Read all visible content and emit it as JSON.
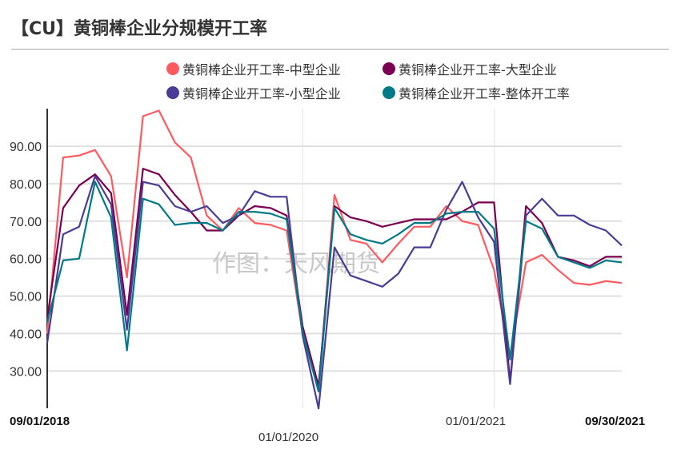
{
  "title": "【CU】黄铜棒企业分规模开工率",
  "watermark": "作图：天风期货",
  "legend": [
    {
      "label": "黄铜棒企业开工率-中型企业",
      "color": "#FF5A5F"
    },
    {
      "label": "黄铜棒企业开工率-大型企业",
      "color": "#7B0051"
    },
    {
      "label": "黄铜棒企业开工率-小型企业",
      "color": "#4A3C96"
    },
    {
      "label": "黄铜棒企业开工率-整体开工率",
      "color": "#007A87"
    }
  ],
  "chart_data": {
    "type": "line",
    "title": "【CU】黄铜棒企业分规模开工率",
    "xlabel": "",
    "ylabel": "",
    "ylim": [
      20,
      100
    ],
    "yticks": [
      "30.00",
      "40.00",
      "50.00",
      "60.00",
      "70.00",
      "80.00",
      "90.00"
    ],
    "xticks": [
      "09/01/2018",
      "01/01/2020",
      "01/01/2021",
      "09/30/2021"
    ],
    "x": [
      "2018-09",
      "2018-10",
      "2018-11",
      "2018-12",
      "2019-01",
      "2019-02",
      "2019-03",
      "2019-04",
      "2019-05",
      "2019-06",
      "2019-07",
      "2019-08",
      "2019-09",
      "2019-10",
      "2019-11",
      "2019-12",
      "2020-01",
      "2020-02",
      "2020-03",
      "2020-04",
      "2020-05",
      "2020-06",
      "2020-07",
      "2020-08",
      "2020-09",
      "2020-10",
      "2020-11",
      "2020-12",
      "2021-01",
      "2021-02",
      "2021-03",
      "2021-04",
      "2021-05",
      "2021-06",
      "2021-07",
      "2021-08",
      "2021-09"
    ],
    "series": [
      {
        "name": "黄铜棒企业开工率-中型企业",
        "color": "#FF5A5F",
        "values": [
          40,
          87,
          87.5,
          89,
          82,
          55,
          98,
          99.5,
          91,
          87,
          71.5,
          67.5,
          73.5,
          69.5,
          69,
          67.5,
          40,
          25,
          77,
          65,
          64,
          59,
          64,
          68.5,
          68.5,
          74,
          70,
          69,
          57,
          34,
          59,
          61,
          57,
          53.5,
          53,
          54,
          53.5
        ]
      },
      {
        "name": "黄铜棒企业开工率-大型企业",
        "color": "#7B0051",
        "values": [
          44,
          73.5,
          79.5,
          82.5,
          77.5,
          45,
          84,
          82.5,
          77,
          72.5,
          67.5,
          67.5,
          71.5,
          74,
          73.5,
          71.5,
          42,
          26,
          74,
          71,
          70,
          68.5,
          69.5,
          70.5,
          70.5,
          70.5,
          72.5,
          75,
          75,
          27,
          74,
          69.5,
          60.5,
          59.5,
          58,
          60.5,
          60.5
        ]
      },
      {
        "name": "黄铜棒企业开工率-小型企业",
        "color": "#4A3C96",
        "values": [
          37.5,
          66.5,
          68.5,
          82,
          74.5,
          41,
          80.5,
          79.5,
          74,
          72.5,
          74,
          69.5,
          71.5,
          78,
          76.5,
          76.5,
          39.5,
          20,
          63,
          55.5,
          54,
          52.5,
          56,
          63,
          63,
          73,
          80.5,
          71,
          64.5,
          26.5,
          71.5,
          76,
          71.5,
          71.5,
          69,
          67.5,
          63.5
        ]
      },
      {
        "name": "黄铜棒企业开工率-整体开工率",
        "color": "#007A87",
        "values": [
          43,
          59.5,
          60,
          80.5,
          71,
          35.5,
          76,
          74.5,
          69,
          69.5,
          69.5,
          67.5,
          72.5,
          72.5,
          72,
          70.5,
          40.5,
          24.5,
          73.5,
          66.5,
          65,
          64,
          66.5,
          69.5,
          69.5,
          72,
          72.5,
          72.5,
          68,
          33,
          70,
          68,
          60.5,
          59,
          57.5,
          59.5,
          59
        ]
      }
    ]
  }
}
